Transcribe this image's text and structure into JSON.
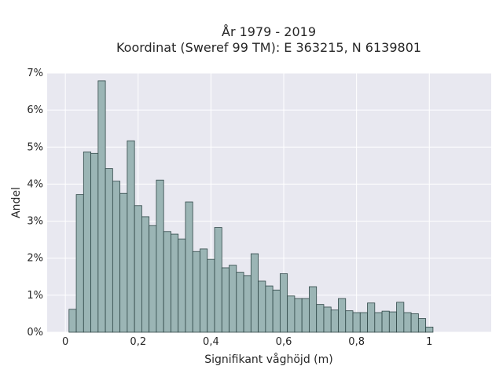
{
  "chart_data": {
    "type": "bar",
    "title_lines": [
      "År 1979 - 2019",
      "Koordinat (Sweref 99 TM): E 363215, N 6139801"
    ],
    "xlabel": "Signifikant våghöjd (m)",
    "ylabel": "Andel",
    "xlim": [
      -0.05,
      1.17
    ],
    "ylim": [
      0,
      7
    ],
    "bin_width": 0.02,
    "bin_start": 0.01,
    "x_ticks": [
      0,
      0.2,
      0.4,
      0.6,
      0.8,
      1
    ],
    "x_tick_labels": [
      "0",
      "0,2",
      "0,4",
      "0,6",
      "0,8",
      "1"
    ],
    "y_ticks": [
      0,
      1,
      2,
      3,
      4,
      5,
      6,
      7
    ],
    "y_tick_labels": [
      "0%",
      "1%",
      "2%",
      "3%",
      "4%",
      "5%",
      "6%",
      "7%"
    ],
    "grid": true,
    "bar_color": "#9bb5b5",
    "edge_color": "#2f4747",
    "background": "#e8e8f0",
    "values": [
      0.62,
      3.72,
      4.87,
      4.83,
      6.79,
      4.42,
      4.08,
      3.75,
      5.17,
      3.42,
      3.12,
      2.88,
      4.11,
      2.72,
      2.65,
      2.52,
      3.52,
      2.18,
      2.25,
      1.97,
      2.83,
      1.74,
      1.81,
      1.62,
      1.53,
      2.12,
      1.38,
      1.25,
      1.14,
      1.58,
      0.98,
      0.91,
      0.91,
      1.23,
      0.75,
      0.68,
      0.6,
      0.91,
      0.58,
      0.53,
      0.53,
      0.79,
      0.53,
      0.57,
      0.55,
      0.81,
      0.53,
      0.5,
      0.37,
      0.14
    ]
  }
}
